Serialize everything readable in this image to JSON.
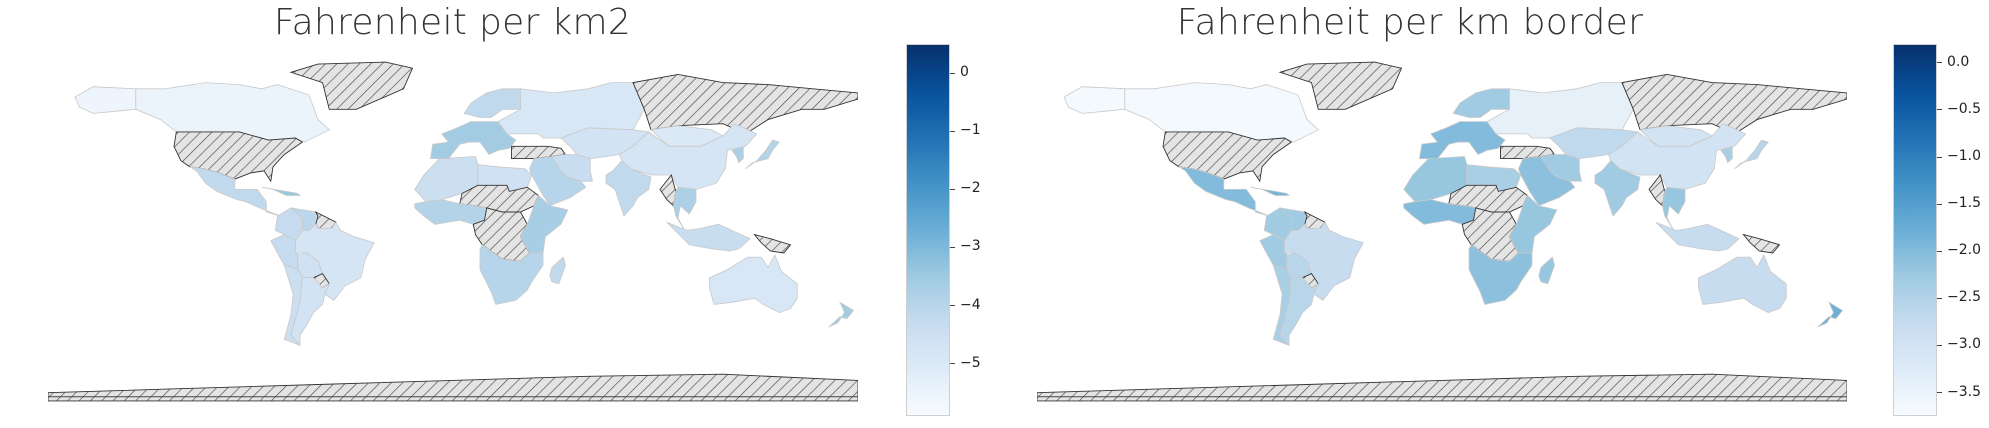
{
  "colors": {
    "cmap": [
      "#f7fbff",
      "#deebf7",
      "#c6dbef",
      "#9ecae1",
      "#6baed6",
      "#4292c6",
      "#2171b5",
      "#08519c",
      "#08306b"
    ],
    "missing_fill": "#e4e4e4",
    "missing_hatch": "#4a4a4a",
    "land_border": "#c9c9c9"
  },
  "chart_data": [
    {
      "type": "choropleth",
      "title": "Fahrenheit per km2",
      "colorbar": {
        "min": -5.9,
        "max": 0.5,
        "ticks": [
          0,
          -1,
          -2,
          -3,
          -4,
          -5
        ],
        "tick_labels": [
          "0",
          "−1",
          "−2",
          "−3",
          "−4",
          "−5"
        ]
      },
      "regions": {
        "canada": -5.5,
        "alaska": -5.6,
        "central_america": -4.2,
        "caribbean": -3.4,
        "colombia": -4.3,
        "venezuela": -4.1,
        "peru": -4.3,
        "brazil": -4.8,
        "bolivia": -4.6,
        "argentina": -4.7,
        "chile": -4.5,
        "europe_west": -3.6,
        "scandinavia": -4.2,
        "russia": -4.9,
        "north_africa": -4.5,
        "egypt_libya": -4.6,
        "west_africa": -3.9,
        "east_africa": -3.7,
        "southern_africa": -4.0,
        "madagascar": -4.2,
        "middle_east": -4.0,
        "iran": -4.4,
        "central_asia": -4.7,
        "india": -4.2,
        "china": -4.8,
        "mongolia": -5.0,
        "southeast_asia": -3.8,
        "indonesia": -4.4,
        "japan": -3.9,
        "korea": -3.8,
        "australia": -4.9,
        "new_zealand": -3.6
      },
      "missing": [
        "usa",
        "greenland",
        "central_siberia",
        "sahel_belt",
        "central_africa_missing",
        "turkey_caucasus",
        "myanmar_pocket",
        "paraguay",
        "guyanas",
        "png",
        "antarctica"
      ]
    },
    {
      "type": "choropleth",
      "title": "Fahrenheit per km border",
      "colorbar": {
        "min": -3.75,
        "max": 0.2,
        "ticks": [
          0.0,
          -0.5,
          -1.0,
          -1.5,
          -2.0,
          -2.5,
          -3.0,
          -3.5
        ],
        "tick_labels": [
          "0.0",
          "−0.5",
          "−1.0",
          "−1.5",
          "−2.0",
          "−2.5",
          "−3.0",
          "−3.5"
        ]
      },
      "regions": {
        "canada": -3.7,
        "alaska": -3.7,
        "central_america": -2.0,
        "caribbean": -1.9,
        "colombia": -2.3,
        "venezuela": -2.3,
        "peru": -2.3,
        "brazil": -2.8,
        "bolivia": -2.6,
        "argentina": -2.6,
        "chile": -2.4,
        "europe_west": -2.0,
        "scandinavia": -2.3,
        "russia": -3.4,
        "north_africa": -2.2,
        "egypt_libya": -2.4,
        "west_africa": -2.0,
        "east_africa": -2.2,
        "southern_africa": -2.1,
        "madagascar": -2.2,
        "middle_east": -2.1,
        "iran": -2.3,
        "central_asia": -2.7,
        "india": -2.3,
        "china": -3.0,
        "mongolia": -3.0,
        "southeast_asia": -2.2,
        "indonesia": -2.8,
        "japan": -2.6,
        "korea": -2.4,
        "australia": -2.8,
        "new_zealand": -1.8
      },
      "missing": [
        "usa",
        "greenland",
        "central_siberia",
        "sahel_belt",
        "central_africa_missing",
        "turkey_caucasus",
        "myanmar_pocket",
        "paraguay",
        "guyanas",
        "png",
        "antarctica"
      ]
    }
  ]
}
